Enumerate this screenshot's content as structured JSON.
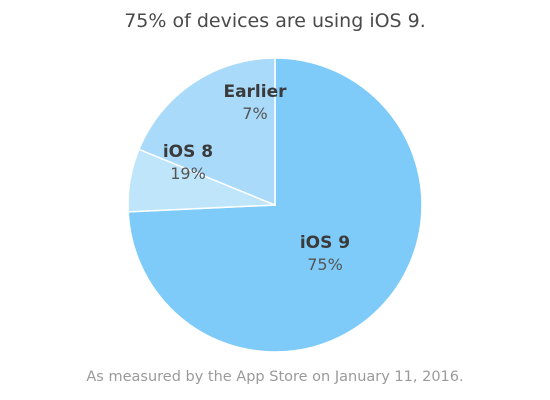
{
  "title": "75% of devices are using iOS 9.",
  "footnote": "As measured by the App Store on January 11, 2016.",
  "chart_data": {
    "type": "pie",
    "title": "75% of devices are using iOS 9.",
    "slices": [
      {
        "label": "iOS 9",
        "value": 75,
        "value_label": "75%",
        "color": "#7ecbf9"
      },
      {
        "label": "Earlier",
        "value": 7,
        "value_label": "7%",
        "color": "#bfe5fb"
      },
      {
        "label": "iOS 8",
        "value": 19,
        "value_label": "19%",
        "color": "#a9dafa"
      }
    ],
    "legend": "none"
  }
}
